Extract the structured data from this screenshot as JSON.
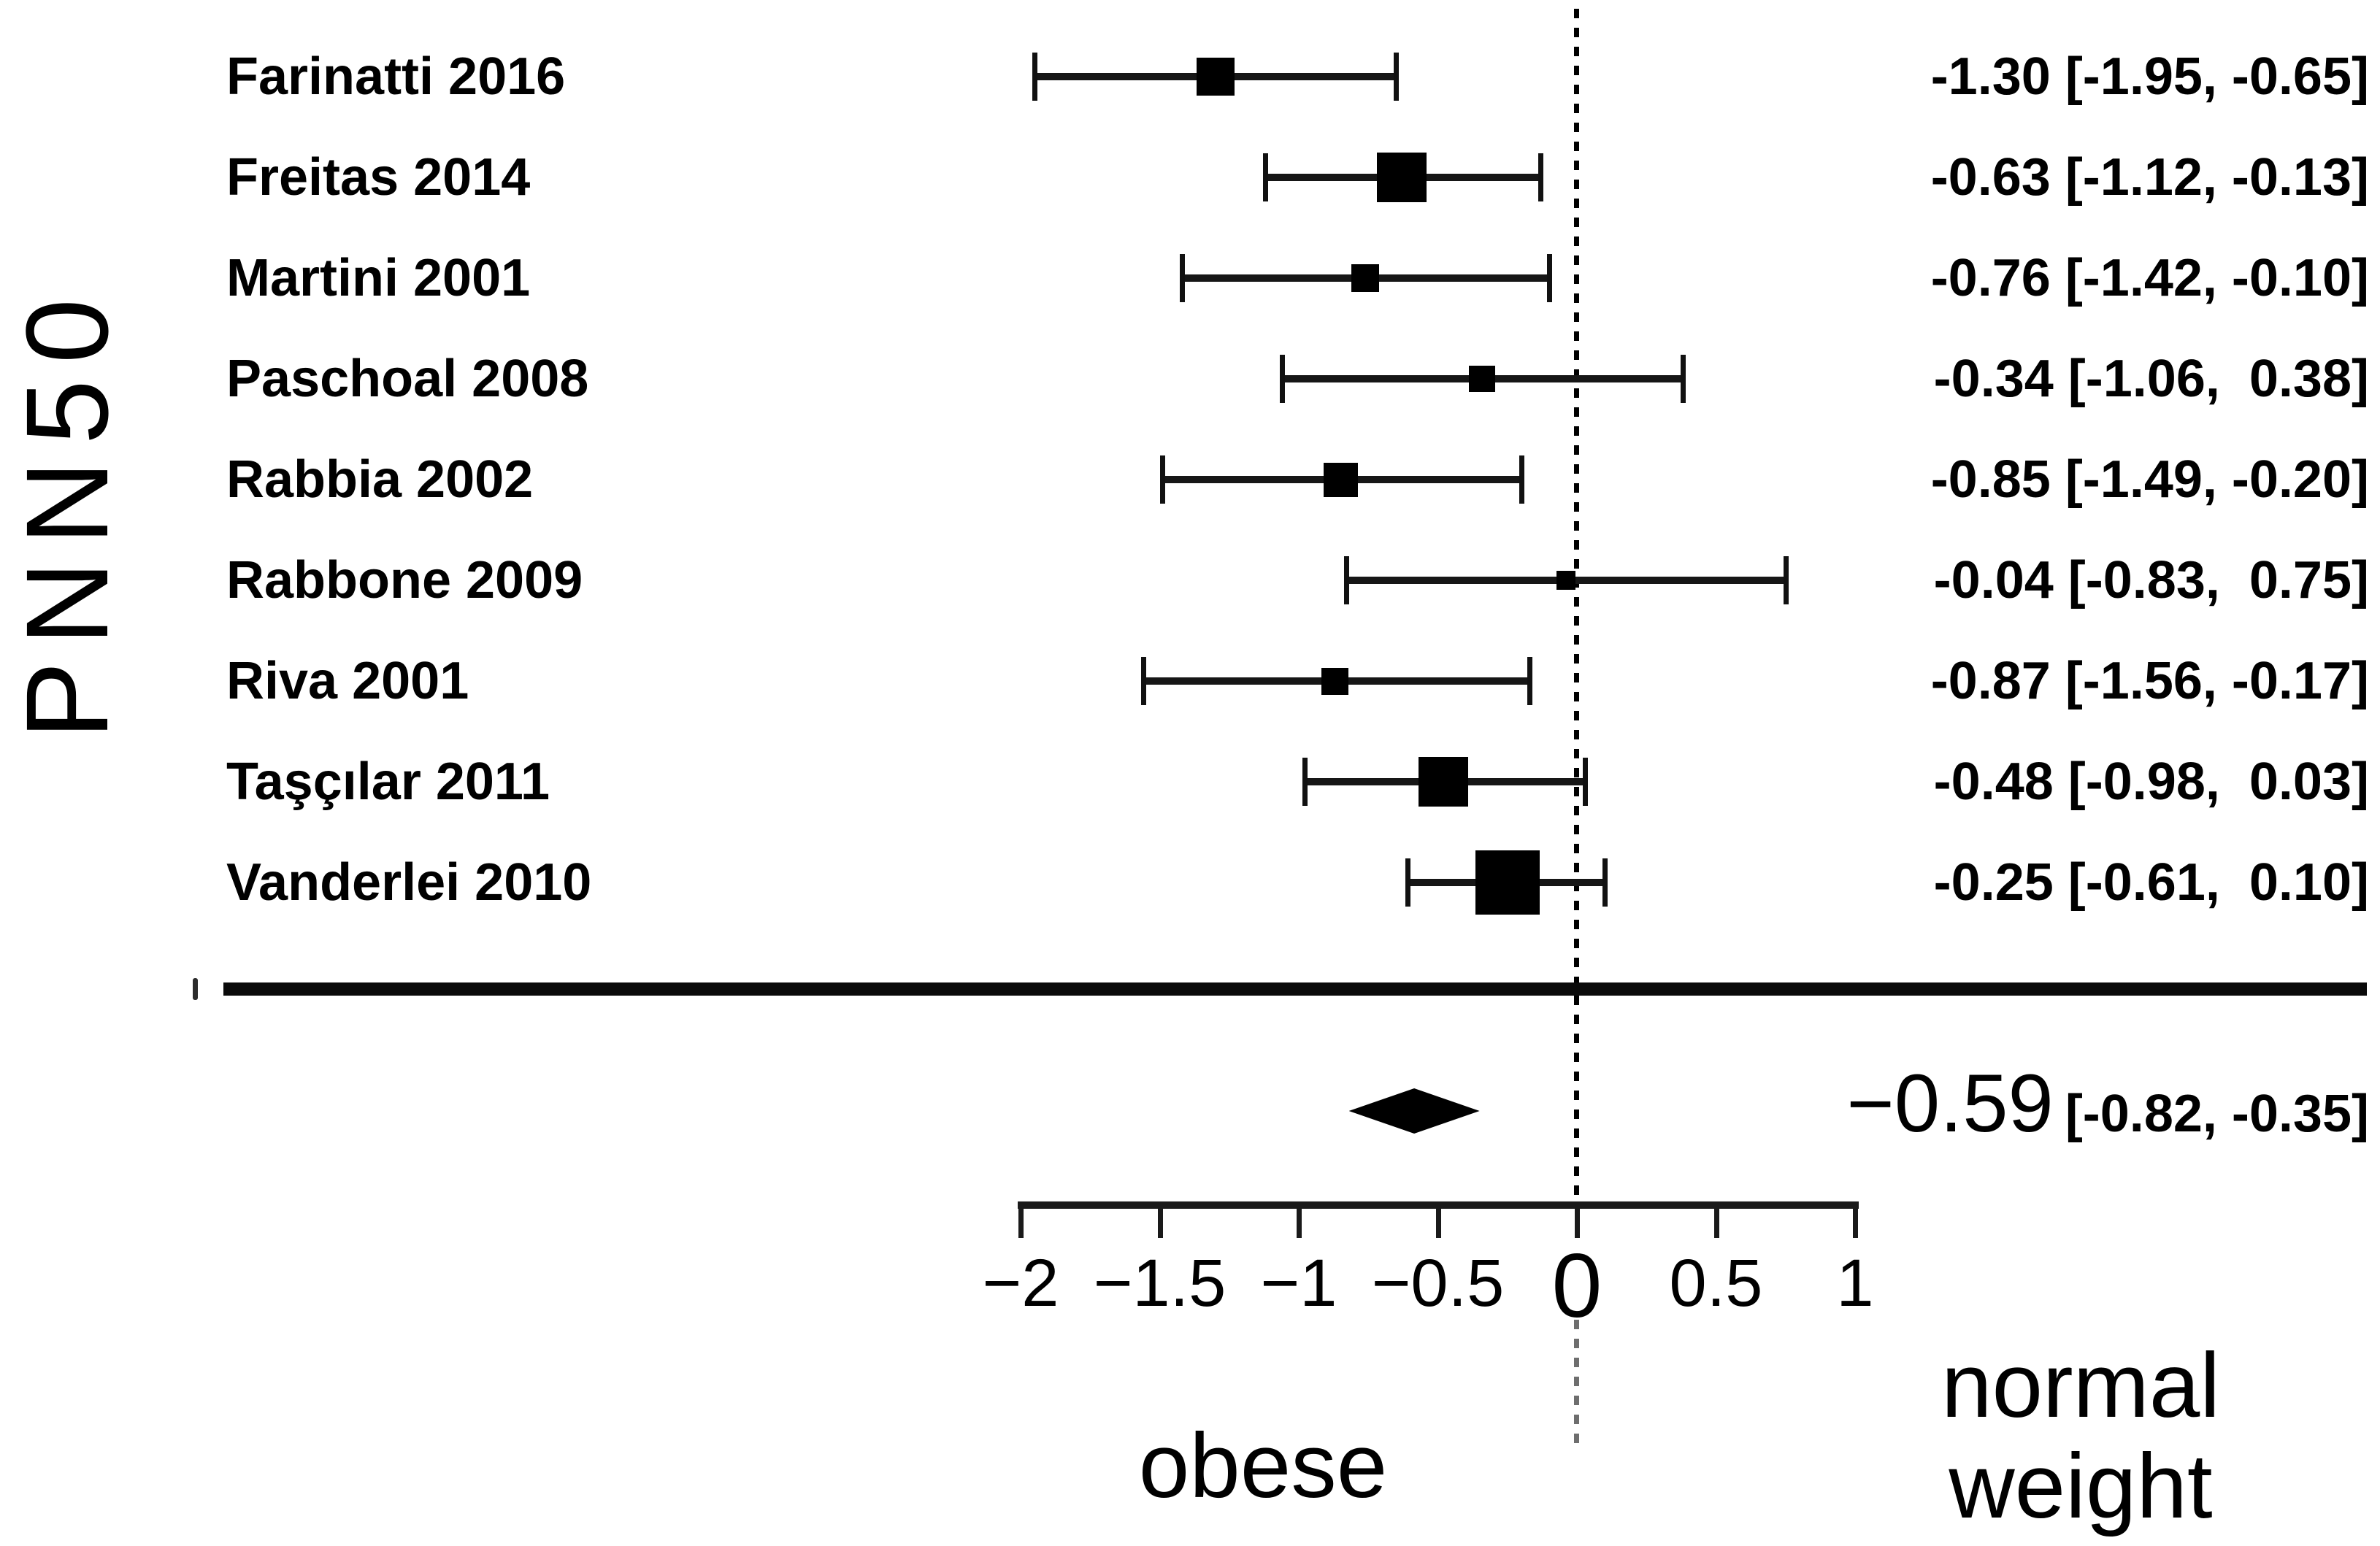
{
  "figure": {
    "ylabel": "PNN50",
    "group_label_left": "obese",
    "group_label_right_line1": "normal",
    "group_label_right_line2": "weight"
  },
  "chart_data": {
    "type": "forest",
    "outcome_label": "PNN50",
    "comparison": {
      "left_of_zero": "obese",
      "right_of_zero": "normal weight"
    },
    "x_axis": {
      "min": -2,
      "max": 1,
      "ticks": [
        -2,
        -1.5,
        -1,
        -0.5,
        0,
        0.5,
        1
      ],
      "tick_labels": [
        "−2",
        "−1.5",
        "−1",
        "−0.5",
        "0",
        "0.5",
        "1"
      ],
      "zero_reference_line": 0,
      "grid": false
    },
    "studies": [
      {
        "label": "Farinatti 2016",
        "est": -1.3,
        "lo": -1.95,
        "hi": -0.65,
        "value_label": "-1.30 [-1.95, -0.65]",
        "marker_size": 52
      },
      {
        "label": "Freitas 2014",
        "est": -0.63,
        "lo": -1.12,
        "hi": -0.13,
        "value_label": "-0.63 [-1.12, -0.13]",
        "marker_size": 68
      },
      {
        "label": "Martini 2001",
        "est": -0.76,
        "lo": -1.42,
        "hi": -0.1,
        "value_label": "-0.76 [-1.42, -0.10]",
        "marker_size": 38
      },
      {
        "label": "Paschoal 2008",
        "est": -0.34,
        "lo": -1.06,
        "hi": 0.38,
        "value_label": "-0.34 [-1.06,  0.38]",
        "marker_size": 36
      },
      {
        "label": "Rabbia 2002",
        "est": -0.85,
        "lo": -1.49,
        "hi": -0.2,
        "value_label": "-0.85 [-1.49, -0.20]",
        "marker_size": 47
      },
      {
        "label": "Rabbone 2009",
        "est": -0.04,
        "lo": -0.83,
        "hi": 0.75,
        "value_label": "-0.04 [-0.83,  0.75]",
        "marker_size": 26
      },
      {
        "label": "Riva 2001",
        "est": -0.87,
        "lo": -1.56,
        "hi": -0.17,
        "value_label": "-0.87 [-1.56, -0.17]",
        "marker_size": 37
      },
      {
        "label": "Taşçılar 2011",
        "est": -0.48,
        "lo": -0.98,
        "hi": 0.03,
        "value_label": "-0.48 [-0.98,  0.03]",
        "marker_size": 68
      },
      {
        "label": "Vanderlei 2010",
        "est": -0.25,
        "lo": -0.61,
        "hi": 0.1,
        "value_label": "-0.25 [-0.61,  0.10]",
        "marker_size": 88
      }
    ],
    "summary": {
      "est": -0.59,
      "lo": -0.82,
      "hi": -0.35,
      "value_label_main": "−0.59",
      "value_label_ci": "[-0.82, -0.35]"
    }
  }
}
